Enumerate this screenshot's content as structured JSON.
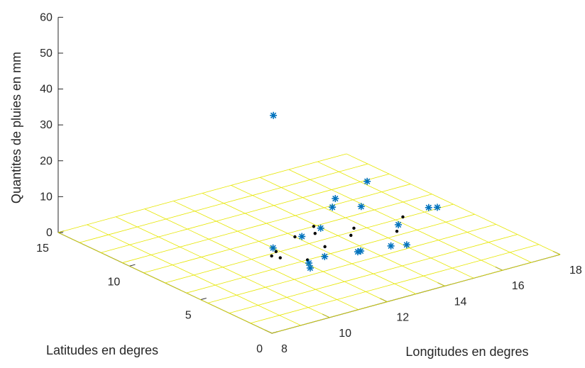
{
  "chart_data": {
    "type": "surface3d",
    "title": "",
    "xlabel": "Longitudes en degres",
    "ylabel": "Latitudes en degres",
    "zlabel": "Quantites de pluies en mm",
    "xlim": [
      8,
      18
    ],
    "ylim": [
      0,
      15
    ],
    "zlim": [
      0,
      60
    ],
    "xticks": [
      "8",
      "10",
      "12",
      "14",
      "16",
      "18"
    ],
    "yticks": [
      "0",
      "5",
      "10",
      "15"
    ],
    "zticks": [
      "0",
      "10",
      "20",
      "30",
      "40",
      "50",
      "60"
    ],
    "grid": false,
    "colormap": "hsv",
    "surface": {
      "style": "mesh",
      "x": [
        8,
        9,
        10,
        11,
        12,
        13,
        14,
        15,
        16,
        17,
        18
      ],
      "y": [
        0,
        1.5,
        3,
        4.5,
        6,
        7.5,
        9,
        10.5,
        12,
        13.5,
        15
      ],
      "z": [
        [
          0,
          0,
          0,
          0,
          0,
          0,
          0,
          0,
          0,
          0,
          0
        ],
        [
          0,
          0,
          0,
          0,
          0,
          0,
          0,
          0,
          0,
          0,
          0
        ],
        [
          0,
          0,
          0,
          0,
          0,
          0,
          0,
          0,
          0,
          0,
          0
        ],
        [
          0,
          0,
          0,
          0,
          0,
          0,
          0,
          0,
          0,
          0,
          0
        ],
        [
          0,
          0,
          0,
          0,
          0,
          0,
          0,
          0,
          0,
          0,
          0
        ],
        [
          0,
          0,
          0,
          0,
          0,
          0,
          0,
          0,
          0,
          0,
          0
        ],
        [
          0,
          0,
          0,
          0,
          0,
          0,
          0,
          0,
          0,
          0,
          0
        ],
        [
          0,
          0,
          0,
          0,
          0,
          0,
          0,
          0,
          0,
          0,
          0
        ],
        [
          0,
          0,
          0,
          0,
          0,
          0,
          0,
          0,
          0,
          0,
          0
        ],
        [
          0,
          0,
          0,
          0,
          0,
          0,
          0,
          0,
          0,
          0,
          0
        ],
        [
          0,
          0,
          0,
          0,
          0,
          0,
          0,
          0,
          0,
          0,
          0
        ]
      ]
    },
    "observed": {
      "marker": "*",
      "color": "#0072BD",
      "points": [
        [
          12.5,
          9,
          34
        ],
        [
          11.5,
          7,
          3
        ],
        [
          12.5,
          7,
          4
        ],
        [
          12.0,
          5.5,
          0.5
        ],
        [
          11.8,
          5.0,
          0.5
        ],
        [
          12.4,
          5.2,
          2
        ],
        [
          13.3,
          7.3,
          4
        ],
        [
          14.2,
          8.3,
          6
        ],
        [
          14.5,
          8.7,
          7
        ],
        [
          15.2,
          8.3,
          4
        ],
        [
          16.0,
          9.5,
          7
        ],
        [
          13.6,
          5.3,
          0.5
        ],
        [
          13.7,
          5.3,
          0.5
        ],
        [
          14.6,
          5.0,
          0.5
        ],
        [
          15.0,
          4.7,
          0.5
        ],
        [
          15.5,
          6.3,
          2
        ],
        [
          16.8,
          6.8,
          3
        ],
        [
          17.0,
          6.6,
          3
        ]
      ]
    },
    "stations": {
      "marker": ".",
      "color": "#000000",
      "points": [
        [
          11.6,
          7.3,
          0
        ],
        [
          11.9,
          7.6,
          0
        ],
        [
          11.7,
          6.9,
          0
        ],
        [
          12.2,
          6.0,
          0
        ],
        [
          13.0,
          8.5,
          0
        ],
        [
          13.6,
          8.3,
          0
        ],
        [
          13.9,
          9.0,
          0
        ],
        [
          13.2,
          6.8,
          0
        ],
        [
          14.3,
          7.2,
          0
        ],
        [
          14.7,
          7.8,
          0
        ],
        [
          15.5,
          6.4,
          0
        ],
        [
          16.3,
          7.6,
          0
        ]
      ]
    }
  }
}
